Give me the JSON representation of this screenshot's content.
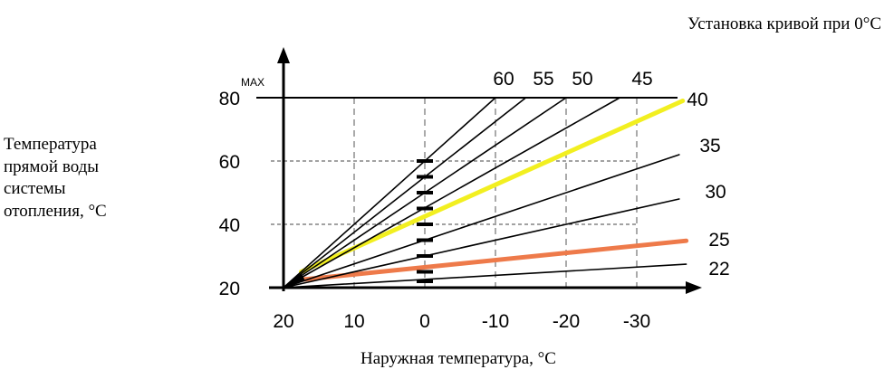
{
  "chart_data": {
    "type": "line",
    "title": "",
    "subtitle": "Установка кривой при 0°C",
    "xlabel": "Наружная температура, °C",
    "ylabel_lines": [
      "Температура",
      "прямой воды",
      "системы",
      "отопления, °C"
    ],
    "x_ticks": [
      "20",
      "10",
      "0",
      "-10",
      "-20",
      "-30"
    ],
    "x_tick_values": [
      20,
      10,
      0,
      -10,
      -20,
      -30
    ],
    "y_ticks": [
      "20",
      "40",
      "60",
      "80"
    ],
    "y_tick_values": [
      20,
      40,
      60,
      80
    ],
    "max_label": "MAX",
    "xlim": [
      21,
      -39
    ],
    "ylim": [
      20,
      90
    ],
    "x_reversed": true,
    "origin": [
      20,
      20
    ],
    "max_line": 80,
    "grid": "dashed",
    "series": [
      {
        "name": "22",
        "set_point_at_0": 22,
        "color": "#000000",
        "points": [
          [
            20,
            20
          ],
          [
            -37,
            27.4
          ]
        ]
      },
      {
        "name": "25",
        "set_point_at_0": 25,
        "color": "#ee7a4a",
        "points": [
          [
            17.5,
            22.5
          ],
          [
            -37,
            34.8
          ]
        ]
      },
      {
        "name": "30",
        "set_point_at_0": 30,
        "color": "#000000",
        "points": [
          [
            20,
            20
          ],
          [
            -36,
            48
          ]
        ]
      },
      {
        "name": "35",
        "set_point_at_0": 35,
        "color": "#000000",
        "points": [
          [
            20,
            20
          ],
          [
            -36,
            62
          ]
        ]
      },
      {
        "name": "40",
        "set_point_at_0": 40,
        "color": "#f2ef20",
        "points": [
          [
            17.5,
            25
          ],
          [
            -36.5,
            79
          ]
        ]
      },
      {
        "name": "45",
        "set_point_at_0": 45,
        "color": "#000000",
        "points": [
          [
            20,
            20
          ],
          [
            -27.6,
            80
          ]
        ]
      },
      {
        "name": "50",
        "set_point_at_0": 50,
        "color": "#000000",
        "points": [
          [
            20,
            20
          ],
          [
            -20,
            80
          ]
        ]
      },
      {
        "name": "55",
        "set_point_at_0": 55,
        "color": "#000000",
        "points": [
          [
            20,
            20
          ],
          [
            -14.3,
            80
          ]
        ]
      },
      {
        "name": "60",
        "set_point_at_0": 60,
        "color": "#000000",
        "points": [
          [
            20,
            20
          ],
          [
            -10,
            80
          ]
        ]
      }
    ]
  }
}
